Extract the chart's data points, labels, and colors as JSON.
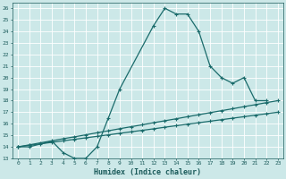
{
  "xlabel": "Humidex (Indice chaleur)",
  "background_color": "#cce8e8",
  "grid_color": "#ffffff",
  "line_color": "#1a6b6b",
  "xlim": [
    -0.5,
    23.5
  ],
  "ylim": [
    13,
    26.5
  ],
  "xticks": [
    0,
    1,
    2,
    3,
    4,
    5,
    6,
    7,
    8,
    9,
    10,
    11,
    12,
    13,
    14,
    15,
    16,
    17,
    18,
    19,
    20,
    21,
    22,
    23
  ],
  "yticks": [
    13,
    14,
    15,
    16,
    17,
    18,
    19,
    20,
    21,
    22,
    23,
    24,
    25,
    26
  ],
  "curve_x": [
    0,
    1,
    3,
    4,
    5,
    6,
    7,
    8,
    9,
    12,
    13,
    14,
    15,
    16,
    17,
    18,
    19,
    20,
    21,
    22
  ],
  "curve_y": [
    14,
    14,
    14.5,
    13.5,
    13,
    13,
    14,
    16.5,
    19,
    24.5,
    26,
    25.5,
    25.5,
    24,
    21,
    20,
    19.5,
    20,
    18,
    18
  ],
  "line1_x": [
    0,
    1,
    2,
    3,
    4,
    5,
    6,
    7,
    8,
    9,
    10,
    11,
    12,
    13,
    14,
    15,
    16,
    17,
    18,
    19,
    20,
    21,
    22,
    23
  ],
  "line1_y": [
    14.0,
    14.13,
    14.26,
    14.39,
    14.52,
    14.65,
    14.78,
    14.91,
    15.04,
    15.17,
    15.3,
    15.43,
    15.56,
    15.7,
    15.83,
    15.96,
    16.09,
    16.22,
    16.35,
    16.48,
    16.61,
    16.74,
    16.87,
    17.0
  ],
  "line2_x": [
    0,
    1,
    2,
    3,
    4,
    5,
    6,
    7,
    8,
    9,
    10,
    11,
    12,
    13,
    14,
    15,
    16,
    17,
    18,
    19,
    20,
    21,
    22,
    23
  ],
  "line2_y": [
    14.0,
    14.17,
    14.35,
    14.52,
    14.7,
    14.87,
    15.04,
    15.22,
    15.39,
    15.57,
    15.74,
    15.91,
    16.09,
    16.26,
    16.43,
    16.61,
    16.78,
    16.96,
    17.13,
    17.3,
    17.48,
    17.65,
    17.83,
    18.0
  ]
}
